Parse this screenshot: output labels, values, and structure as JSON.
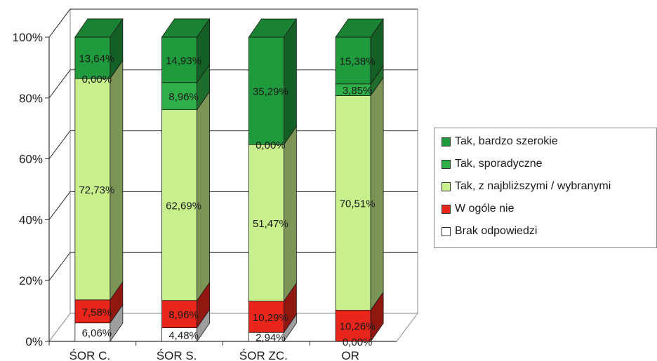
{
  "chart_data": {
    "type": "bar",
    "stacked": true,
    "percent": true,
    "three_d": true,
    "categories": [
      "ŚOR C.",
      "ŚOR S.",
      "ŚOR ZC.",
      "OR"
    ],
    "series": [
      {
        "name": "Brak odpowiedzi",
        "color": "#ffffff",
        "values": [
          6.06,
          4.48,
          2.94,
          0.0
        ],
        "labels": [
          "6,06%",
          "4,48%",
          "2,94%",
          "0,00%"
        ]
      },
      {
        "name": "W ogóle nie",
        "color": "#e8261c",
        "values": [
          7.58,
          8.96,
          10.29,
          10.26
        ],
        "labels": [
          "7,58%",
          "8,96%",
          "10,29%",
          "10,26%"
        ]
      },
      {
        "name": "Tak, z najbliższymi / wybranymi",
        "color": "#c8f08c",
        "values": [
          72.73,
          62.69,
          51.47,
          70.51
        ],
        "labels": [
          "72,73%",
          "62,69%",
          "51,47%",
          "70,51%"
        ]
      },
      {
        "name": "Tak, sporadyczne",
        "color": "#2faf48",
        "values": [
          0.0,
          8.96,
          0.0,
          3.85
        ],
        "labels": [
          "0,00%",
          "8,96%",
          "0,00%",
          "3,85%"
        ]
      },
      {
        "name": "Tak, bardzo szerokie",
        "color": "#1f9a3c",
        "values": [
          13.64,
          14.93,
          35.29,
          15.38
        ],
        "labels": [
          "13,64%",
          "14,93%",
          "35,29%",
          "15,38%"
        ]
      }
    ],
    "y_ticks": [
      "0%",
      "20%",
      "40%",
      "60%",
      "80%",
      "100%"
    ],
    "ylim": [
      0,
      100
    ],
    "grid": true,
    "legend_position": "right"
  }
}
